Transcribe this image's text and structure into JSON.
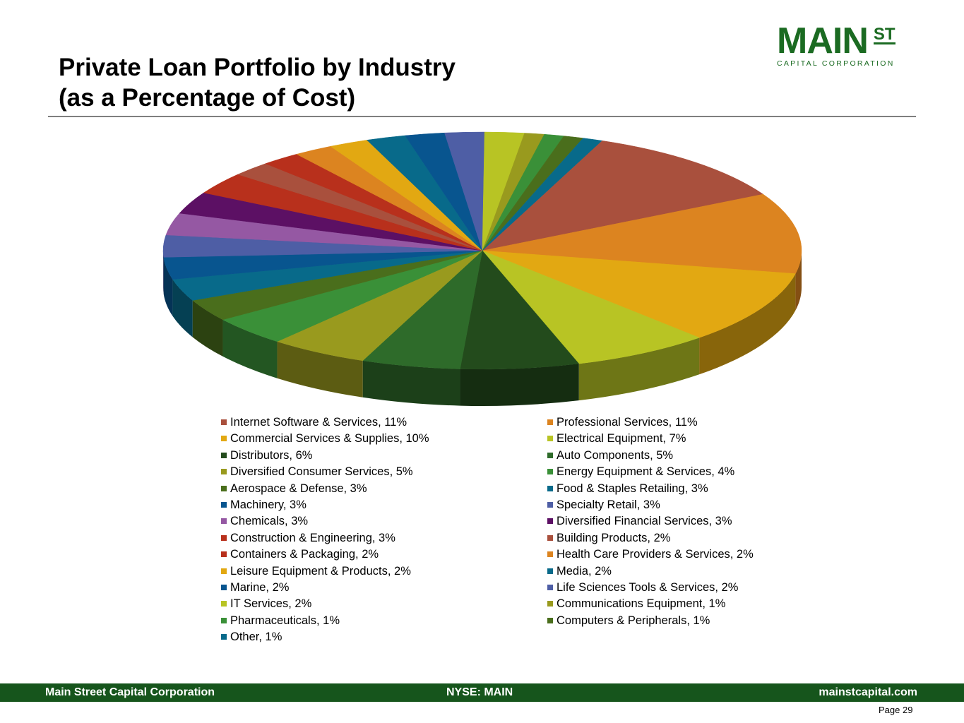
{
  "header": {
    "title_line1": "Private Loan Portfolio by Industry",
    "title_line2": "(as a Percentage of Cost)",
    "logo_main": "MAIN",
    "logo_st": "ST",
    "logo_sub": "CAPITAL CORPORATION"
  },
  "chart_data": {
    "type": "pie",
    "style": "3d",
    "title": "Private Loan Portfolio by Industry (as a Percentage of Cost)",
    "legend_position": "bottom",
    "slices": [
      {
        "label": "Internet Software & Services",
        "value": 11,
        "legend": "Internet Software & Services, 11%",
        "color": "#a9503d"
      },
      {
        "label": "Professional Services",
        "value": 11,
        "legend": "Professional Services, 11%",
        "color": "#dc8420"
      },
      {
        "label": "Commercial Services & Supplies",
        "value": 10,
        "legend": "Commercial Services & Supplies, 10%",
        "color": "#e2a812"
      },
      {
        "label": "Electrical Equipment",
        "value": 7,
        "legend": "Electrical Equipment, 7%",
        "color": "#b8c424"
      },
      {
        "label": "Distributors",
        "value": 6,
        "legend": "Distributors, 6%",
        "color": "#234b1c"
      },
      {
        "label": "Auto Components",
        "value": 5,
        "legend": "Auto Components, 5%",
        "color": "#2e6b2a"
      },
      {
        "label": "Diversified Consumer Services",
        "value": 5,
        "legend": "Diversified Consumer Services, 5%",
        "color": "#999a1e"
      },
      {
        "label": "Energy Equipment & Services",
        "value": 4,
        "legend": "Energy Equipment & Services, 4%",
        "color": "#3a9038"
      },
      {
        "label": "Aerospace & Defense",
        "value": 3,
        "legend": "Aerospace & Defense, 3%",
        "color": "#4a6e1c"
      },
      {
        "label": "Food & Staples Retailing",
        "value": 3,
        "legend": "Food & Staples Retailing, 3%",
        "color": "#086a8a"
      },
      {
        "label": "Machinery",
        "value": 3,
        "legend": "Machinery, 3%",
        "color": "#08558f"
      },
      {
        "label": "Specialty Retail",
        "value": 3,
        "legend": "Specialty Retail, 3%",
        "color": "#4e5ea5"
      },
      {
        "label": "Chemicals",
        "value": 3,
        "legend": "Chemicals, 3%",
        "color": "#9558a3"
      },
      {
        "label": "Diversified Financial Services",
        "value": 3,
        "legend": "Diversified Financial Services, 3%",
        "color": "#5c1064"
      },
      {
        "label": "Construction & Engineering",
        "value": 3,
        "legend": "Construction & Engineering, 3%",
        "color": "#b8301c"
      },
      {
        "label": "Building Products",
        "value": 2,
        "legend": "Building Products, 2%",
        "color": "#a9503d"
      },
      {
        "label": "Containers & Packaging",
        "value": 2,
        "legend": "Containers & Packaging, 2%",
        "color": "#b8301c"
      },
      {
        "label": "Health Care Providers & Services",
        "value": 2,
        "legend": "Health Care Providers & Services, 2%",
        "color": "#dc8420"
      },
      {
        "label": "Leisure Equipment & Products",
        "value": 2,
        "legend": "Leisure Equipment & Products, 2%",
        "color": "#e2a812"
      },
      {
        "label": "Media",
        "value": 2,
        "legend": "Media, 2%",
        "color": "#086a8a"
      },
      {
        "label": "Marine",
        "value": 2,
        "legend": "Marine, 2%",
        "color": "#08558f"
      },
      {
        "label": "Life Sciences Tools & Services",
        "value": 2,
        "legend": "Life Sciences Tools & Services, 2%",
        "color": "#4e5ea5"
      },
      {
        "label": "IT Services",
        "value": 2,
        "legend": "IT Services, 2%",
        "color": "#b8c424"
      },
      {
        "label": "Communications Equipment",
        "value": 1,
        "legend": "Communications Equipment, 1%",
        "color": "#999a1e"
      },
      {
        "label": "Pharmaceuticals",
        "value": 1,
        "legend": "Pharmaceuticals, 1%",
        "color": "#3a9038"
      },
      {
        "label": "Computers & Peripherals",
        "value": 1,
        "legend": "Computers & Peripherals, 1%",
        "color": "#4a6e1c"
      },
      {
        "label": "Other",
        "value": 1,
        "legend": "Other, 1%",
        "color": "#086a8a"
      }
    ]
  },
  "footer": {
    "left": "Main Street Capital Corporation",
    "center": "NYSE: MAIN",
    "right": "mainstcapital.com",
    "page": "Page  29"
  }
}
